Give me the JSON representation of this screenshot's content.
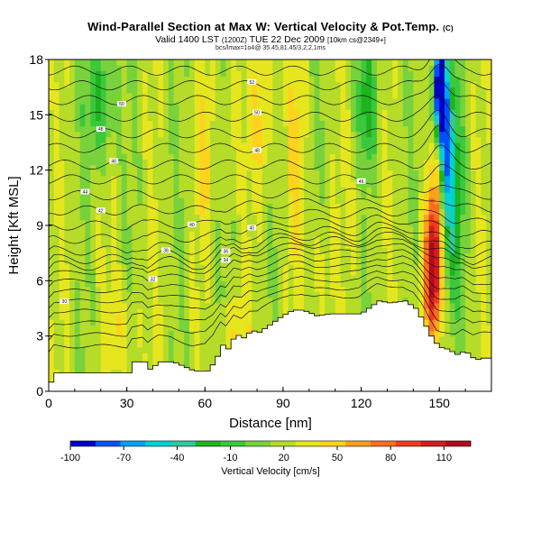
{
  "title": "Wind-Parallel Section at Max W: Vertical Velocity & Pot.Temp.",
  "title_mark": "(C)",
  "valid_line": "Valid 1400 LST",
  "valid_utc": "(1200Z)",
  "valid_date": "TUE 22 Dec 2009",
  "valid_grid": "[10km cs@2349+]",
  "subinfo": "bcs/lmax=1o4@ 35.45,81.45/3,2,2,1ms",
  "colors": {
    "terrain": "#ffffff",
    "contour": "#111111",
    "scale": [
      "#0000c8",
      "#0050ff",
      "#00a0ff",
      "#00d2d2",
      "#30c8a0",
      "#1eb41e",
      "#3cc83c",
      "#78d23c",
      "#b4dc28",
      "#e6e61e",
      "#ffd21e",
      "#ffa01e",
      "#ff6e1e",
      "#f03c1e",
      "#d21e1e",
      "#b40a1e"
    ]
  },
  "chart_data": {
    "type": "heatmap",
    "xlabel": "Distance [nm]",
    "ylabel": "Height [Kft MSL]",
    "xlim": [
      0,
      170
    ],
    "ylim": [
      0,
      18
    ],
    "xticks": [
      0,
      30,
      60,
      90,
      120,
      150
    ],
    "yticks": [
      0,
      3,
      6,
      9,
      12,
      15,
      18
    ],
    "colorbar": {
      "label": "Vertical Velocity [cm/s]",
      "range": [
        -100,
        125
      ],
      "tick_labels": [
        "-100",
        "-70",
        "-40",
        "-10",
        "20",
        "50",
        "80",
        "110"
      ],
      "tick_values": [
        -100,
        -70,
        -40,
        -10,
        20,
        50,
        80,
        110
      ]
    },
    "terrain_profile": {
      "x": [
        0,
        2,
        30,
        32,
        36,
        38,
        42,
        47,
        55,
        60,
        63,
        66,
        68,
        71,
        74,
        77,
        80,
        84,
        89,
        93,
        97,
        102,
        107,
        113,
        119,
        123,
        126,
        130,
        136,
        140,
        143,
        146,
        149,
        152,
        156,
        159,
        163,
        166,
        170
      ],
      "ft_kft": [
        0.5,
        1.0,
        1.0,
        1.6,
        1.6,
        1.2,
        1.6,
        1.6,
        1.1,
        1.1,
        1.6,
        2.5,
        2.3,
        3.1,
        2.9,
        3.3,
        3.2,
        3.6,
        4.1,
        4.4,
        4.4,
        4.1,
        4.2,
        4.2,
        4.2,
        4.6,
        4.9,
        4.8,
        4.9,
        4.5,
        3.8,
        3.0,
        2.4,
        2.3,
        2.0,
        2.2,
        1.7,
        1.8,
        1.8
      ]
    },
    "w_field": [
      {
        "x": 148,
        "z": 7.5,
        "value": 118,
        "sx": 2.2,
        "sz": 2.5
      },
      {
        "x": 149,
        "z": 12.5,
        "value": 55,
        "sx": 1.6,
        "sz": 1.8
      },
      {
        "x": 146,
        "z": 5.0,
        "value": 45,
        "sx": 3.0,
        "sz": 1.6
      },
      {
        "x": 150,
        "z": 16.5,
        "value": -100,
        "sx": 1.6,
        "sz": 1.8
      },
      {
        "x": 152,
        "z": 14.0,
        "value": -60,
        "sx": 2.5,
        "sz": 3.0
      },
      {
        "x": 155,
        "z": 10.0,
        "value": -25,
        "sx": 3.0,
        "sz": 3.5
      },
      {
        "x": 82,
        "z": 15.0,
        "value": 45,
        "sx": 3.0,
        "sz": 3.5
      },
      {
        "x": 95,
        "z": 12.5,
        "value": 40,
        "sx": 2.5,
        "sz": 4.0
      },
      {
        "x": 60,
        "z": 13.0,
        "value": 40,
        "sx": 2.5,
        "sz": 3.0
      },
      {
        "x": 70,
        "z": 15.5,
        "value": 35,
        "sx": 2.5,
        "sz": 2.5
      },
      {
        "x": 28,
        "z": 3.2,
        "value": 40,
        "sx": 4.0,
        "sz": 1.6
      },
      {
        "x": 72,
        "z": 3.2,
        "value": 40,
        "sx": 3.5,
        "sz": 1.5
      },
      {
        "x": 105,
        "z": 6.5,
        "value": 35,
        "sx": 3.0,
        "sz": 2.5
      },
      {
        "x": 118,
        "z": 11.5,
        "value": 30,
        "sx": 3.0,
        "sz": 3.0
      },
      {
        "x": 20,
        "z": 16.0,
        "value": -20,
        "sx": 4.0,
        "sz": 2.5
      },
      {
        "x": 122,
        "z": 15.5,
        "value": -20,
        "sx": 3.0,
        "sz": 2.5
      },
      {
        "x": 10,
        "z": 11.0,
        "value": 18,
        "sx": 4.0,
        "sz": 3.0
      }
    ],
    "theta_contours": [
      {
        "z": 1.6,
        "label": ""
      },
      {
        "z": 2.3,
        "label": ""
      },
      {
        "z": 3.0,
        "label": ""
      },
      {
        "z": 3.7,
        "label": ""
      },
      {
        "z": 4.3,
        "label": "30",
        "lx": 6
      },
      {
        "z": 4.9,
        "label": ""
      },
      {
        "z": 5.5,
        "label": "32",
        "lx": 40
      },
      {
        "z": 6.0,
        "label": "34",
        "lx": 68
      },
      {
        "z": 6.4,
        "label": "36",
        "lx": 68
      },
      {
        "z": 6.8,
        "label": "38",
        "lx": 45
      },
      {
        "z": 7.3,
        "label": ""
      },
      {
        "z": 8.0,
        "label": "40",
        "lx": 78
      },
      {
        "z": 8.8,
        "label": "40",
        "lx": 55
      },
      {
        "z": 9.7,
        "label": "42",
        "lx": 20
      },
      {
        "z": 10.6,
        "label": "44",
        "lx": 14
      },
      {
        "z": 11.5,
        "label": "46",
        "lx": 120
      },
      {
        "z": 12.3,
        "label": "46",
        "lx": 25
      },
      {
        "z": 13.2,
        "label": "48",
        "lx": 80
      },
      {
        "z": 14.0,
        "label": "48",
        "lx": 20
      },
      {
        "z": 14.9,
        "label": "50",
        "lx": 80
      },
      {
        "z": 15.8,
        "label": "50",
        "lx": 28
      },
      {
        "z": 16.6,
        "label": "52",
        "lx": 78
      },
      {
        "z": 17.4,
        "label": ""
      }
    ]
  }
}
